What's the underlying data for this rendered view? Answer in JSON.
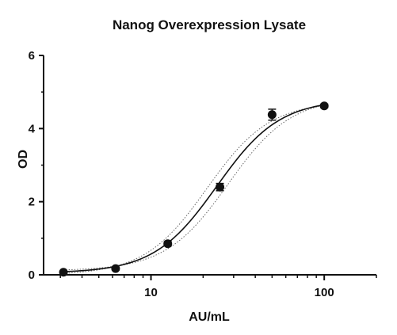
{
  "chart_data": {
    "type": "scatter",
    "title": "Nanog Overexpression Lysate",
    "xlabel": "AU/mL",
    "ylabel": "OD",
    "x_scale": "log",
    "xlim": [
      2.4,
      200
    ],
    "ylim": [
      0,
      6
    ],
    "x_ticks": [
      10,
      100
    ],
    "x_tick_labels": [
      "10",
      "100"
    ],
    "y_ticks": [
      0,
      2,
      4,
      6
    ],
    "y_tick_labels": [
      "0",
      "2",
      "4",
      "6"
    ],
    "grid": false,
    "legend": "none",
    "series": [
      {
        "type": "scatter",
        "x": [
          3.125,
          6.25,
          12.5,
          25,
          50,
          100
        ],
        "y": [
          0.07,
          0.17,
          0.85,
          2.4,
          4.38,
          4.62
        ],
        "error": [
          0.03,
          0.04,
          0.06,
          0.1,
          0.15,
          0.05
        ]
      },
      {
        "type": "fit-curve",
        "model": "4PL",
        "bottom": 0.05,
        "top": 4.8,
        "ec50": 24,
        "hill": 2.4,
        "style": "solid"
      },
      {
        "type": "confidence-band",
        "style": "dotted",
        "upper_shift": 0.14,
        "lower_shift": -0.14
      }
    ],
    "colors": {
      "marker": "#111111",
      "curve": "#111111",
      "band": "#666666",
      "axis": "#111111"
    }
  }
}
